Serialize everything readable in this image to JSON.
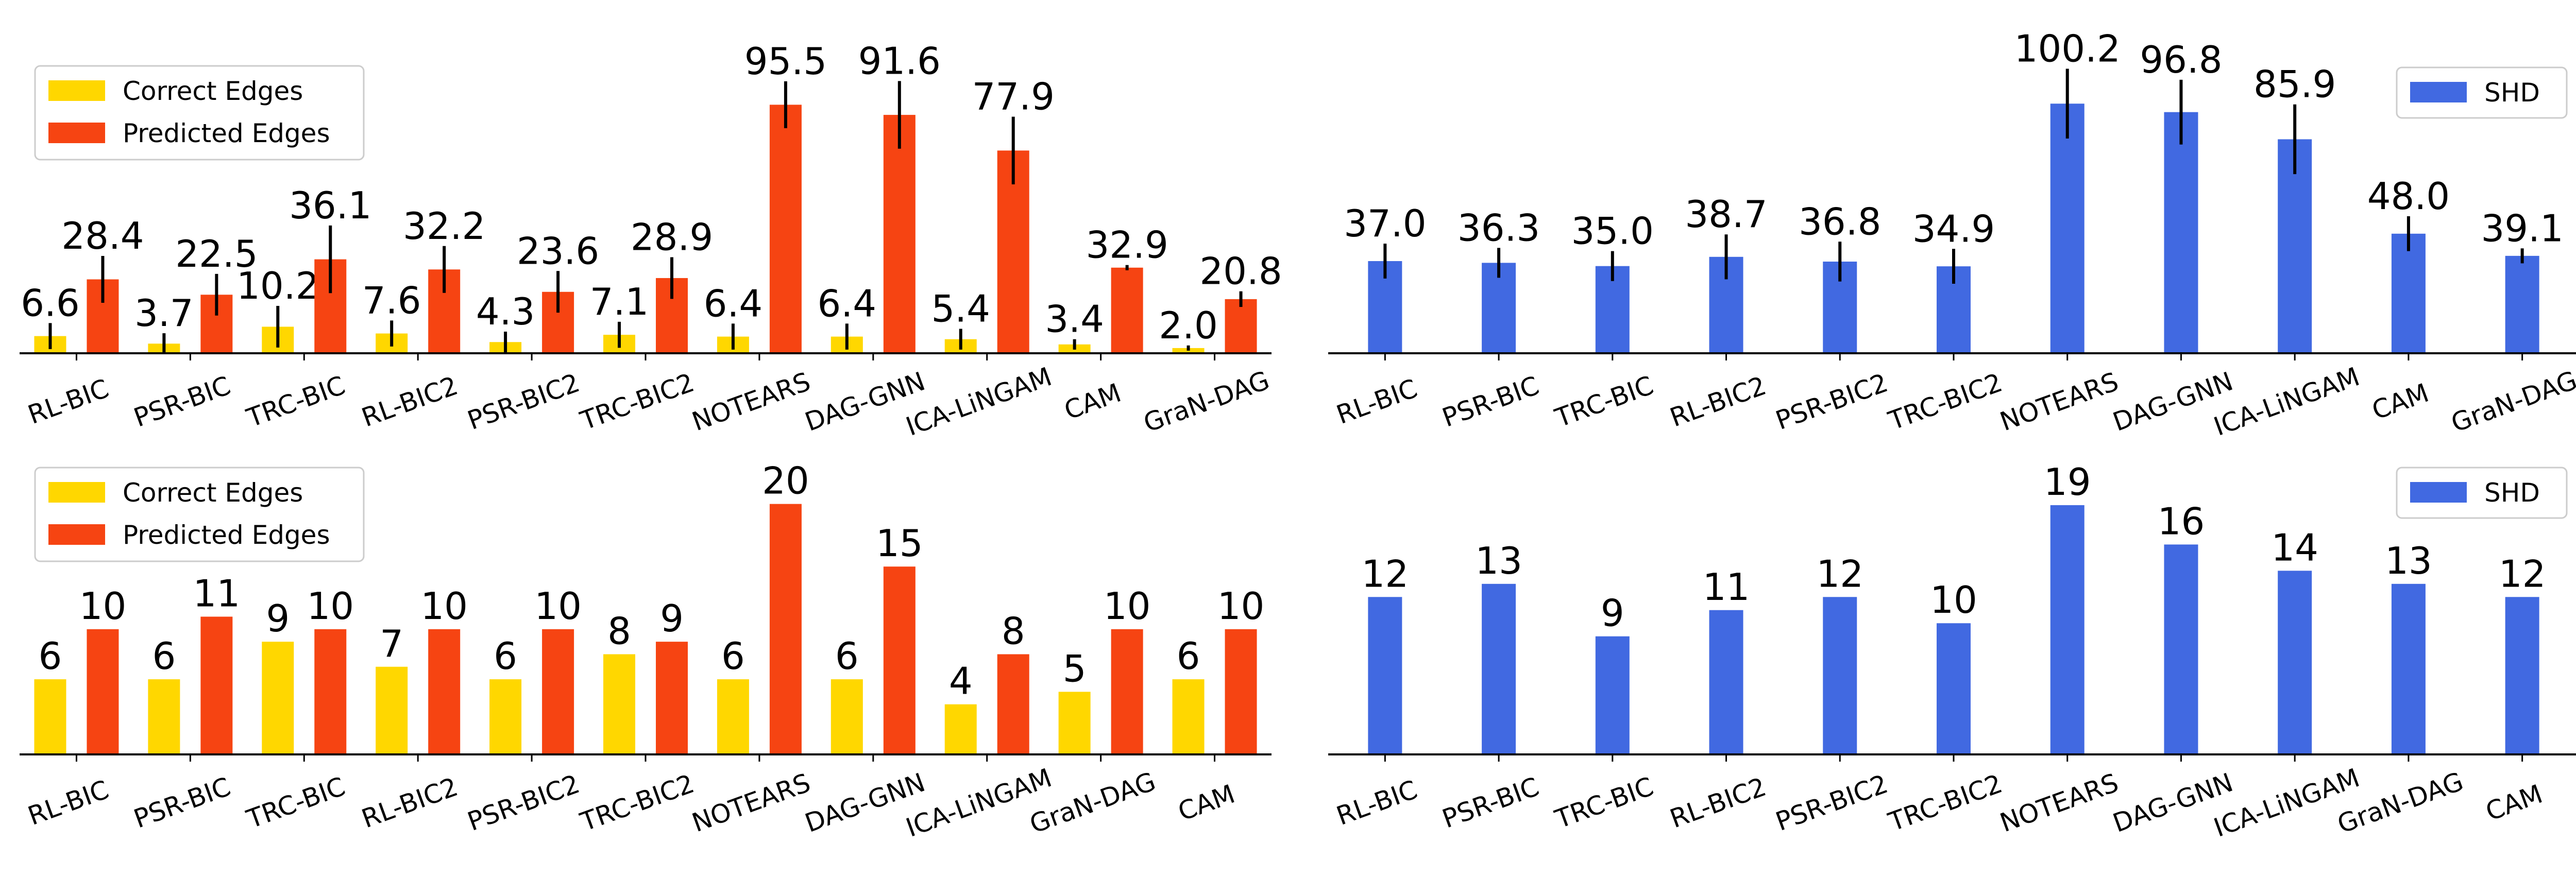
{
  "colors": {
    "correct": "#FFD700",
    "predicted": "#F64412",
    "shd": "#4169E1"
  },
  "chart_data": [
    {
      "type": "bar",
      "panel": "top-left",
      "categories": [
        "RL-BIC",
        "PSR-BIC",
        "TRC-BIC",
        "RL-BIC2",
        "PSR-BIC2",
        "TRC-BIC2",
        "NOTEARS",
        "DAG-GNN",
        "ICA-LiNGAM",
        "CAM",
        "GraN-DAG"
      ],
      "value_labels": [
        [
          "6.6",
          "3.7",
          "10.2",
          "7.6",
          "4.3",
          "7.1",
          "6.4",
          "6.4",
          "5.4",
          "3.4",
          "2.0"
        ],
        [
          "28.4",
          "22.5",
          "36.1",
          "32.2",
          "23.6",
          "28.9",
          "95.5",
          "91.6",
          "77.9",
          "32.9",
          "20.8"
        ]
      ],
      "series": [
        {
          "name": "Correct Edges",
          "values": [
            6.6,
            3.7,
            10.2,
            7.6,
            4.3,
            7.1,
            6.4,
            6.4,
            5.4,
            3.4,
            2.0
          ],
          "errors": [
            5,
            4,
            8,
            5,
            4,
            5,
            5,
            5,
            4,
            2,
            1
          ]
        },
        {
          "name": "Predicted Edges",
          "values": [
            28.4,
            22.5,
            36.1,
            32.2,
            23.6,
            28.9,
            95.5,
            91.6,
            77.9,
            32.9,
            20.8
          ],
          "errors": [
            9,
            8,
            13,
            9,
            8,
            8,
            9,
            13,
            13,
            1,
            3
          ]
        }
      ],
      "legend": "top-left",
      "ylim": [
        0,
        112
      ],
      "title": "",
      "xlabel": "",
      "ylabel": ""
    },
    {
      "type": "bar",
      "panel": "top-right",
      "categories": [
        "RL-BIC",
        "PSR-BIC",
        "TRC-BIC",
        "RL-BIC2",
        "PSR-BIC2",
        "TRC-BIC2",
        "NOTEARS",
        "DAG-GNN",
        "ICA-LiNGAM",
        "CAM",
        "GraN-DAG"
      ],
      "value_labels": [
        [
          "37.0",
          "36.3",
          "35.0",
          "38.7",
          "36.8",
          "34.9",
          "100.2",
          "96.8",
          "85.9",
          "48.0",
          "39.1"
        ]
      ],
      "series": [
        {
          "name": "SHD",
          "values": [
            37.0,
            36.3,
            35.0,
            38.7,
            36.8,
            34.9,
            100.2,
            96.8,
            85.9,
            48.0,
            39.1
          ],
          "errors": [
            7,
            6,
            6,
            9,
            8,
            7,
            14,
            13,
            14,
            7,
            3
          ]
        }
      ],
      "legend": "top-right",
      "ylim": [
        0,
        117
      ],
      "title": "",
      "xlabel": "",
      "ylabel": ""
    },
    {
      "type": "bar",
      "panel": "bottom-left",
      "categories": [
        "RL-BIC",
        "PSR-BIC",
        "TRC-BIC",
        "RL-BIC2",
        "PSR-BIC2",
        "TRC-BIC2",
        "NOTEARS",
        "DAG-GNN",
        "ICA-LiNGAM",
        "GraN-DAG",
        "CAM"
      ],
      "value_labels": [
        [
          "6",
          "6",
          "9",
          "7",
          "6",
          "8",
          "6",
          "6",
          "4",
          "5",
          "6"
        ],
        [
          "10",
          "11",
          "10",
          "10",
          "10",
          "9",
          "20",
          "15",
          "8",
          "10",
          "10"
        ]
      ],
      "series": [
        {
          "name": "Correct Edges",
          "values": [
            6,
            6,
            9,
            7,
            6,
            8,
            6,
            6,
            4,
            5,
            6
          ]
        },
        {
          "name": "Predicted Edges",
          "values": [
            10,
            11,
            10,
            10,
            10,
            9,
            20,
            15,
            8,
            10,
            10
          ]
        }
      ],
      "legend": "top-left",
      "ylim": [
        0,
        22
      ],
      "title": "",
      "xlabel": "",
      "ylabel": ""
    },
    {
      "type": "bar",
      "panel": "bottom-right",
      "categories": [
        "RL-BIC",
        "PSR-BIC",
        "TRC-BIC",
        "RL-BIC2",
        "PSR-BIC2",
        "TRC-BIC2",
        "NOTEARS",
        "DAG-GNN",
        "ICA-LiNGAM",
        "GraN-DAG",
        "CAM"
      ],
      "value_labels": [
        [
          "12",
          "13",
          "9",
          "11",
          "12",
          "10",
          "19",
          "16",
          "14",
          "13",
          "12"
        ]
      ],
      "series": [
        {
          "name": "SHD",
          "values": [
            12,
            13,
            9,
            11,
            12,
            10,
            19,
            16,
            14,
            13,
            12
          ]
        }
      ],
      "legend": "top-right",
      "ylim": [
        0,
        21
      ],
      "title": "",
      "xlabel": "",
      "ylabel": ""
    }
  ]
}
